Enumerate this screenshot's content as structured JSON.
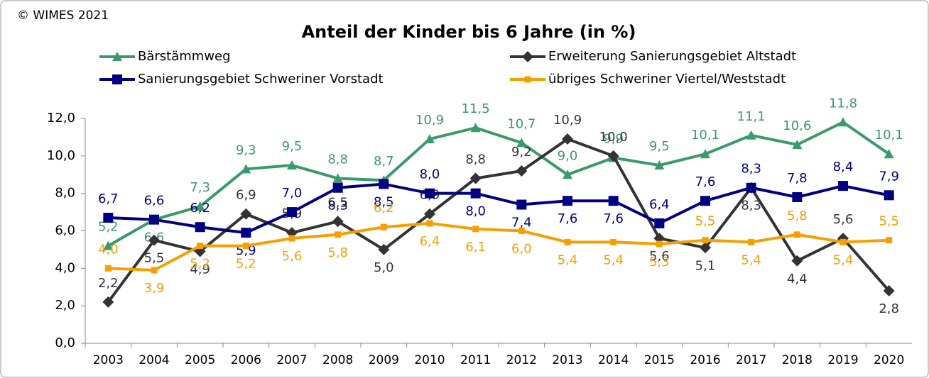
{
  "chart_data": {
    "type": "line",
    "copyright": "© WIMES 2021",
    "title": "Anteil der Kinder bis 6 Jahre (in %)",
    "categories": [
      "2003",
      "2004",
      "2005",
      "2006",
      "2007",
      "2008",
      "2009",
      "2010",
      "2011",
      "2012",
      "2013",
      "2014",
      "2015",
      "2016",
      "2017",
      "2018",
      "2019",
      "2020"
    ],
    "ylim": [
      0,
      12
    ],
    "yticks": [
      {
        "value": 0,
        "label": "0,0"
      },
      {
        "value": 2,
        "label": "2,0"
      },
      {
        "value": 4,
        "label": "4,0"
      },
      {
        "value": 6,
        "label": "6,0"
      },
      {
        "value": 8,
        "label": "8,0"
      },
      {
        "value": 10,
        "label": "10,0"
      },
      {
        "value": 12,
        "label": "12,0"
      }
    ],
    "series": [
      {
        "name": "Bärstämmweg",
        "color": "#3a9a6a",
        "marker": "triangle",
        "values": [
          5.2,
          6.6,
          7.3,
          9.3,
          9.5,
          8.8,
          8.7,
          10.9,
          11.5,
          10.7,
          9.0,
          9.9,
          9.5,
          10.1,
          11.1,
          10.6,
          11.8,
          10.1
        ],
        "value_labels": [
          "5,2",
          "6,6",
          "7,3",
          "9,3",
          "9,5",
          "8,8",
          "8,7",
          "10,9",
          "11,5",
          "10,7",
          "9,0",
          "9,9",
          "9,5",
          "10,1",
          "11,1",
          "10,6",
          "11,8",
          "10,1"
        ]
      },
      {
        "name": "Erweiterung Sanierungsgebiet Altstadt",
        "color": "#333333",
        "marker": "diamond",
        "values": [
          2.2,
          5.5,
          4.9,
          6.9,
          5.9,
          6.5,
          5.0,
          6.9,
          8.8,
          9.2,
          10.9,
          10.0,
          5.6,
          5.1,
          8.3,
          4.4,
          5.6,
          2.8
        ],
        "value_labels": [
          "2,2",
          "5,5",
          "4,9",
          "6,9",
          "5,9",
          "6,5",
          "5,0",
          "6,9",
          "8,8",
          "9,2",
          "10,9",
          "10,0",
          "5,6",
          "5,1",
          "8,3",
          "4,4",
          "5,6",
          "2,8"
        ]
      },
      {
        "name": "Sanierungsgebiet Schweriner Vorstadt",
        "color": "#000080",
        "marker": "square",
        "values": [
          6.7,
          6.6,
          6.2,
          5.9,
          7.0,
          8.3,
          8.5,
          8.0,
          8.0,
          7.4,
          7.6,
          7.6,
          6.4,
          7.6,
          8.3,
          7.8,
          8.4,
          7.9
        ],
        "value_labels": [
          "6,7",
          "6,6",
          "6,2",
          "5,9",
          "7,0",
          "8,3",
          "8,5",
          "8,0",
          "8,0",
          "7,4",
          "7,6",
          "7,6",
          "6,4",
          "7,6",
          "8,3",
          "7,8",
          "8,4",
          "7,9"
        ]
      },
      {
        "name": "übriges Schweriner Viertel/Weststadt",
        "color": "#f5a000",
        "marker": "smallsquare",
        "values": [
          4.0,
          3.9,
          5.2,
          5.2,
          5.6,
          5.8,
          6.2,
          6.4,
          6.1,
          6.0,
          5.4,
          5.4,
          5.3,
          5.5,
          5.4,
          5.8,
          5.4,
          5.5
        ],
        "value_labels": [
          "4,0",
          "3,9",
          "5,2",
          "5,2",
          "5,6",
          "5,8",
          "6,2",
          "6,4",
          "6,1",
          "6,0",
          "5,4",
          "5,4",
          "5,3",
          "5,5",
          "5,4",
          "5,8",
          "5,4",
          "5,5"
        ]
      }
    ]
  }
}
